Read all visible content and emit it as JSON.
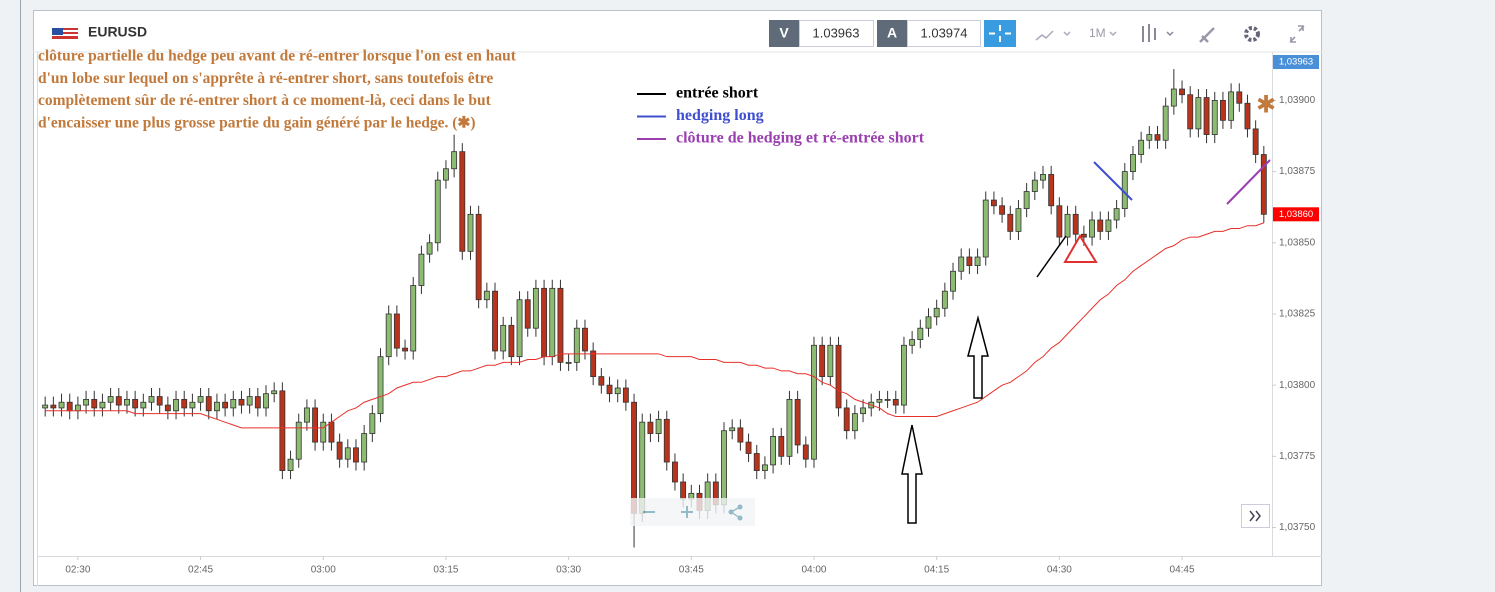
{
  "chart_data": {
    "type": "candlestick",
    "title": "EURUSD",
    "toolbar": {
      "bid_label": "V",
      "bid": 1.03963,
      "ask_label": "A",
      "ask": 1.03974,
      "timeframe": "1M"
    },
    "x": [
      "02:26",
      "02:27",
      "02:28",
      "02:29",
      "02:30",
      "02:31",
      "02:32",
      "02:33",
      "02:34",
      "02:35",
      "02:36",
      "02:37",
      "02:38",
      "02:39",
      "02:40",
      "02:41",
      "02:42",
      "02:43",
      "02:44",
      "02:45",
      "02:46",
      "02:47",
      "02:48",
      "02:49",
      "02:50",
      "02:51",
      "02:52",
      "02:53",
      "02:54",
      "02:55",
      "02:56",
      "02:57",
      "02:58",
      "02:59",
      "03:00",
      "03:01",
      "03:02",
      "03:03",
      "03:04",
      "03:05",
      "03:06",
      "03:07",
      "03:08",
      "03:09",
      "03:10",
      "03:11",
      "03:12",
      "03:13",
      "03:14",
      "03:15",
      "03:16",
      "03:17",
      "03:18",
      "03:19",
      "03:20",
      "03:21",
      "03:22",
      "03:23",
      "03:24",
      "03:25",
      "03:26",
      "03:27",
      "03:28",
      "03:29",
      "03:30",
      "03:31",
      "03:32",
      "03:33",
      "03:34",
      "03:35",
      "03:36",
      "03:37",
      "03:38",
      "03:39",
      "03:40",
      "03:41",
      "03:42",
      "03:43",
      "03:44",
      "03:45",
      "03:46",
      "03:47",
      "03:48",
      "03:49",
      "03:50",
      "03:51",
      "03:52",
      "03:53",
      "03:54",
      "03:55",
      "03:56",
      "03:57",
      "03:58",
      "03:59",
      "04:00",
      "04:01",
      "04:02",
      "04:03",
      "04:04",
      "04:05",
      "04:06",
      "04:07",
      "04:08",
      "04:09",
      "04:10",
      "04:11",
      "04:12",
      "04:13",
      "04:14",
      "04:15",
      "04:16",
      "04:17",
      "04:18",
      "04:19",
      "04:20",
      "04:21",
      "04:22",
      "04:23",
      "04:24",
      "04:25",
      "04:26",
      "04:27",
      "04:28",
      "04:29",
      "04:30",
      "04:31",
      "04:32",
      "04:33",
      "04:34",
      "04:35",
      "04:36",
      "04:37",
      "04:38",
      "04:39",
      "04:40",
      "04:41",
      "04:42",
      "04:43",
      "04:44",
      "04:45",
      "04:46",
      "04:47",
      "04:48",
      "04:49",
      "04:50",
      "04:51",
      "04:52",
      "04:53",
      "04:54",
      "04:55"
    ],
    "open": [
      1.03792,
      1.03793,
      1.03792,
      1.03794,
      1.03791,
      1.03793,
      1.03795,
      1.03792,
      1.03794,
      1.03796,
      1.03793,
      1.03795,
      1.03792,
      1.03794,
      1.03796,
      1.03793,
      1.03791,
      1.03795,
      1.03792,
      1.03794,
      1.03796,
      1.03791,
      1.03794,
      1.03792,
      1.03795,
      1.03793,
      1.03796,
      1.03792,
      1.03797,
      1.03798,
      1.0377,
      1.03774,
      1.03787,
      1.03792,
      1.0378,
      1.03787,
      1.0378,
      1.03774,
      1.03778,
      1.03773,
      1.03783,
      1.0379,
      1.0381,
      1.03825,
      1.03813,
      1.03812,
      1.03835,
      1.03846,
      1.0385,
      1.03872,
      1.03876,
      1.03882,
      1.03847,
      1.0386,
      1.0383,
      1.03833,
      1.03812,
      1.03821,
      1.0381,
      1.0383,
      1.0382,
      1.03834,
      1.0381,
      1.03834,
      1.03808,
      1.03808,
      1.0382,
      1.03812,
      1.03803,
      1.038,
      1.03797,
      1.03799,
      1.03794,
      1.03755,
      1.03787,
      1.03783,
      1.03788,
      1.03773,
      1.03766,
      1.0376,
      1.03762,
      1.03756,
      1.03766,
      1.03758,
      1.03784,
      1.03785,
      1.0378,
      1.03776,
      1.0377,
      1.03772,
      1.03782,
      1.03775,
      1.03795,
      1.03779,
      1.03774,
      1.03814,
      1.03803,
      1.03814,
      1.03792,
      1.03784,
      1.0379,
      1.03792,
      1.03794,
      1.03795,
      1.03795,
      1.03793,
      1.03814,
      1.03816,
      1.0382,
      1.03824,
      1.03827,
      1.03833,
      1.0384,
      1.03845,
      1.03842,
      1.03845,
      1.03865,
      1.03863,
      1.0386,
      1.03854,
      1.03862,
      1.03868,
      1.03872,
      1.03874,
      1.03863,
      1.03852,
      1.0386,
      1.03853,
      1.03852,
      1.03858,
      1.03854,
      1.03858,
      1.03862,
      1.03875,
      1.03881,
      1.03886,
      1.03888,
      1.03886,
      1.03898,
      1.03904,
      1.03902,
      1.0389,
      1.03901,
      1.03888,
      1.039,
      1.03893,
      1.03903,
      1.03899,
      1.0389,
      1.03881
    ],
    "high": [
      1.03796,
      1.03796,
      1.03797,
      1.03797,
      1.03796,
      1.03798,
      1.03798,
      1.03797,
      1.03799,
      1.03799,
      1.03798,
      1.03798,
      1.03797,
      1.03799,
      1.03799,
      1.03796,
      1.03798,
      1.03798,
      1.03797,
      1.03799,
      1.03799,
      1.03797,
      1.03797,
      1.03798,
      1.03798,
      1.03799,
      1.03799,
      1.038,
      1.03801,
      1.03801,
      1.03777,
      1.0379,
      1.03795,
      1.03795,
      1.0379,
      1.0379,
      1.03783,
      1.03781,
      1.03781,
      1.03786,
      1.03793,
      1.03813,
      1.03828,
      1.03828,
      1.03816,
      1.03838,
      1.03849,
      1.03853,
      1.03875,
      1.03879,
      1.03888,
      1.03885,
      1.03863,
      1.03863,
      1.03836,
      1.03836,
      1.03824,
      1.03824,
      1.03833,
      1.03833,
      1.03837,
      1.03837,
      1.03837,
      1.03837,
      1.03811,
      1.03823,
      1.03823,
      1.03815,
      1.03806,
      1.03803,
      1.03802,
      1.03802,
      1.03797,
      1.0379,
      1.0379,
      1.03791,
      1.03791,
      1.03776,
      1.03769,
      1.03765,
      1.03765,
      1.03769,
      1.03769,
      1.03787,
      1.03788,
      1.03788,
      1.03783,
      1.03779,
      1.03775,
      1.03785,
      1.03785,
      1.03798,
      1.03798,
      1.03782,
      1.03817,
      1.03817,
      1.03817,
      1.03817,
      1.03795,
      1.03793,
      1.03795,
      1.03797,
      1.03798,
      1.03798,
      1.03798,
      1.03817,
      1.03819,
      1.03823,
      1.03827,
      1.0383,
      1.03836,
      1.03843,
      1.03848,
      1.03848,
      1.03848,
      1.03868,
      1.03868,
      1.03866,
      1.03863,
      1.03865,
      1.03871,
      1.03875,
      1.03877,
      1.03877,
      1.03866,
      1.03863,
      1.03863,
      1.03856,
      1.03861,
      1.03861,
      1.03861,
      1.03865,
      1.03878,
      1.03884,
      1.03889,
      1.03891,
      1.03891,
      1.03901,
      1.03911,
      1.03907,
      1.03905,
      1.03904,
      1.03904,
      1.03903,
      1.03903,
      1.03906,
      1.03906,
      1.03902,
      1.03893,
      1.03884
    ],
    "low": [
      1.03789,
      1.03789,
      1.03789,
      1.03788,
      1.03788,
      1.0379,
      1.03789,
      1.03789,
      1.03791,
      1.0379,
      1.0379,
      1.03789,
      1.03789,
      1.03791,
      1.0379,
      1.03788,
      1.03788,
      1.03789,
      1.03789,
      1.03791,
      1.03788,
      1.03788,
      1.03789,
      1.03789,
      1.0379,
      1.0379,
      1.03789,
      1.03789,
      1.03794,
      1.03767,
      1.03767,
      1.03771,
      1.03784,
      1.03777,
      1.03777,
      1.03777,
      1.03771,
      1.03771,
      1.0377,
      1.0377,
      1.0378,
      1.03787,
      1.03807,
      1.0381,
      1.03809,
      1.03809,
      1.03832,
      1.03843,
      1.03847,
      1.03869,
      1.03873,
      1.03844,
      1.03844,
      1.03827,
      1.03827,
      1.03809,
      1.03809,
      1.03807,
      1.03807,
      1.03817,
      1.03817,
      1.03807,
      1.03807,
      1.03805,
      1.03805,
      1.03805,
      1.03809,
      1.038,
      1.03797,
      1.03794,
      1.03794,
      1.03791,
      1.03743,
      1.03752,
      1.0378,
      1.0378,
      1.0377,
      1.03763,
      1.03757,
      1.03757,
      1.03753,
      1.03753,
      1.03755,
      1.03755,
      1.03781,
      1.03777,
      1.03773,
      1.03767,
      1.03767,
      1.03769,
      1.03772,
      1.03772,
      1.03776,
      1.03771,
      1.03771,
      1.038,
      1.038,
      1.03789,
      1.03781,
      1.03781,
      1.03787,
      1.03789,
      1.03791,
      1.03792,
      1.0379,
      1.0379,
      1.03811,
      1.03813,
      1.03817,
      1.03821,
      1.03824,
      1.0383,
      1.03837,
      1.03839,
      1.03839,
      1.03842,
      1.0386,
      1.03857,
      1.03851,
      1.03851,
      1.03859,
      1.03865,
      1.03869,
      1.0386,
      1.03849,
      1.03849,
      1.0385,
      1.03849,
      1.03849,
      1.03851,
      1.03851,
      1.03855,
      1.03859,
      1.03872,
      1.03878,
      1.03883,
      1.03883,
      1.03883,
      1.03895,
      1.03899,
      1.03887,
      1.03887,
      1.03885,
      1.03885,
      1.0389,
      1.0389,
      1.03896,
      1.03887,
      1.03878,
      1.03857
    ],
    "close": [
      1.03793,
      1.03792,
      1.03794,
      1.03791,
      1.03793,
      1.03795,
      1.03792,
      1.03794,
      1.03796,
      1.03793,
      1.03795,
      1.03792,
      1.03794,
      1.03796,
      1.03793,
      1.03791,
      1.03795,
      1.03792,
      1.03794,
      1.03796,
      1.03791,
      1.03794,
      1.03792,
      1.03795,
      1.03793,
      1.03796,
      1.03792,
      1.03797,
      1.03798,
      1.0377,
      1.03774,
      1.03787,
      1.03792,
      1.0378,
      1.03787,
      1.0378,
      1.03774,
      1.03778,
      1.03773,
      1.03783,
      1.0379,
      1.0381,
      1.03825,
      1.03813,
      1.03812,
      1.03835,
      1.03846,
      1.0385,
      1.03872,
      1.03876,
      1.03882,
      1.03847,
      1.0386,
      1.0383,
      1.03833,
      1.03812,
      1.03821,
      1.0381,
      1.0383,
      1.0382,
      1.03834,
      1.0381,
      1.03834,
      1.03808,
      1.03808,
      1.0382,
      1.03812,
      1.03803,
      1.038,
      1.03797,
      1.03799,
      1.03794,
      1.03755,
      1.03787,
      1.03783,
      1.03788,
      1.03773,
      1.03766,
      1.0376,
      1.03762,
      1.03756,
      1.03766,
      1.03758,
      1.03784,
      1.03785,
      1.0378,
      1.03776,
      1.0377,
      1.03772,
      1.03782,
      1.03775,
      1.03795,
      1.03779,
      1.03774,
      1.03814,
      1.03803,
      1.03814,
      1.03792,
      1.03784,
      1.0379,
      1.03792,
      1.03794,
      1.03795,
      1.03795,
      1.03793,
      1.03814,
      1.03816,
      1.0382,
      1.03824,
      1.03827,
      1.03833,
      1.0384,
      1.03845,
      1.03842,
      1.03845,
      1.03865,
      1.03863,
      1.0386,
      1.03854,
      1.03862,
      1.03868,
      1.03872,
      1.03874,
      1.03863,
      1.03852,
      1.0386,
      1.03853,
      1.03852,
      1.03858,
      1.03854,
      1.03858,
      1.03862,
      1.03875,
      1.03881,
      1.03886,
      1.03888,
      1.03886,
      1.03898,
      1.03904,
      1.03902,
      1.0389,
      1.03901,
      1.03888,
      1.039,
      1.03893,
      1.03903,
      1.03899,
      1.0389,
      1.03881,
      1.0386
    ],
    "up_color": "#8dbb72",
    "down_color": "#b8341c",
    "moving_average": {
      "color": "#e8302a",
      "values": [
        1.03791,
        1.03791,
        1.03791,
        1.03791,
        1.03791,
        1.03791,
        1.03791,
        1.03791,
        1.03791,
        1.03791,
        1.03791,
        1.0379,
        1.0379,
        1.0379,
        1.0379,
        1.0379,
        1.0379,
        1.0379,
        1.0379,
        1.0379,
        1.03789,
        1.03788,
        1.03787,
        1.03786,
        1.03785,
        1.03785,
        1.03785,
        1.03785,
        1.03785,
        1.03785,
        1.03785,
        1.03785,
        1.03785,
        1.03785,
        1.03785,
        1.03787,
        1.03789,
        1.03791,
        1.03792,
        1.03794,
        1.03795,
        1.03796,
        1.03797,
        1.03799,
        1.038,
        1.03801,
        1.03801,
        1.03802,
        1.03803,
        1.03803,
        1.03804,
        1.03805,
        1.03805,
        1.03806,
        1.03807,
        1.03807,
        1.03808,
        1.03808,
        1.03808,
        1.03809,
        1.03809,
        1.0381,
        1.0381,
        1.03811,
        1.03811,
        1.03811,
        1.03811,
        1.03811,
        1.03811,
        1.03811,
        1.03811,
        1.03811,
        1.03811,
        1.03811,
        1.03811,
        1.03811,
        1.0381,
        1.0381,
        1.0381,
        1.0381,
        1.03809,
        1.03809,
        1.03809,
        1.03808,
        1.03808,
        1.03808,
        1.03807,
        1.03807,
        1.03806,
        1.03806,
        1.03805,
        1.03805,
        1.03804,
        1.03804,
        1.03803,
        1.03801,
        1.038,
        1.03798,
        1.03797,
        1.03795,
        1.03794,
        1.03793,
        1.03792,
        1.0379,
        1.03789,
        1.03789,
        1.03789,
        1.03789,
        1.03789,
        1.03789,
        1.0379,
        1.03791,
        1.03792,
        1.03793,
        1.03794,
        1.03796,
        1.03798,
        1.038,
        1.03801,
        1.03803,
        1.03805,
        1.03808,
        1.0381,
        1.03813,
        1.03815,
        1.03818,
        1.03821,
        1.03824,
        1.03827,
        1.0383,
        1.03832,
        1.03835,
        1.03837,
        1.0384,
        1.03842,
        1.03844,
        1.03846,
        1.03848,
        1.03849,
        1.03851,
        1.03852,
        1.03852,
        1.03853,
        1.03854,
        1.03854,
        1.03855,
        1.03855,
        1.03856,
        1.03856,
        1.03857
      ]
    },
    "xlim": [
      "02:25",
      "04:56"
    ],
    "xticks": [
      "02:30",
      "02:45",
      "03:00",
      "03:15",
      "03:30",
      "03:45",
      "04:00",
      "04:15",
      "04:30",
      "04:45"
    ],
    "ylim": [
      1.0374,
      1.03917
    ],
    "yticks": [
      {
        "value": 1.0375,
        "label": "1,03750"
      },
      {
        "value": 1.03775,
        "label": "1,03775"
      },
      {
        "value": 1.038,
        "label": "1,03800"
      },
      {
        "value": 1.03825,
        "label": "1,03825"
      },
      {
        "value": 1.0385,
        "label": "1,03850"
      },
      {
        "value": 1.03875,
        "label": "1,03875"
      },
      {
        "value": 1.039,
        "label": "1,03900"
      }
    ],
    "price_tags": [
      {
        "value": 1.03963,
        "label": "1,03963",
        "color": "#4a90d9"
      },
      {
        "value": 1.0386,
        "label": "1,03860",
        "color": "#ff0000"
      }
    ],
    "annotations": {
      "note": [
        "clôture partielle du hedge peu avant de ré-entrer lorsque l'on est en haut",
        "d'un lobe sur lequel on s'apprête à ré-entrer short, sans toutefois être",
        "complètement sûr de ré-entrer short à ce moment-là, ceci dans le but",
        "d'encaisser une plus grosse partie du gain généré par le hedge. (✱)"
      ],
      "note_color": "#c27a3c",
      "legend": [
        {
          "name": "entrée short",
          "color": "#000000"
        },
        {
          "name": "hedging long",
          "color": "#3f4fcf"
        },
        {
          "name": "clôture de hedging et ré-entrée short",
          "color": "#9b3fb0"
        }
      ],
      "star": "✱"
    }
  }
}
